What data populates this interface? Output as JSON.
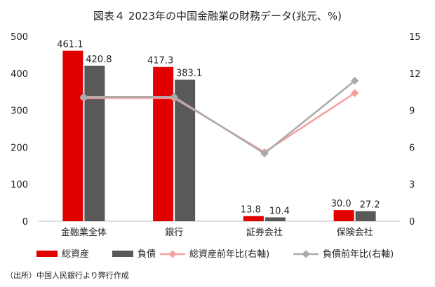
{
  "chart_data": {
    "type": "bar",
    "title": "図表４ 2023年の中国金融業の財務データ(兆元、%)",
    "categories": [
      "金融業全体",
      "銀行",
      "証券会社",
      "保険会社"
    ],
    "series": [
      {
        "name": "総資産",
        "type": "bar",
        "axis": "left",
        "color": "#e00000",
        "values": [
          461.1,
          417.3,
          13.8,
          30.0
        ],
        "labels": [
          "461.1",
          "417.3",
          "13.8",
          "30.0"
        ]
      },
      {
        "name": "負債",
        "type": "bar",
        "axis": "left",
        "color": "#595959",
        "values": [
          420.8,
          383.1,
          10.4,
          27.2
        ],
        "labels": [
          "420.8",
          "383.1",
          "10.4",
          "27.2"
        ]
      },
      {
        "name": "総資産前年比(右軸)",
        "type": "line",
        "axis": "right",
        "color": "#f4a0a0",
        "values": [
          10.0,
          10.0,
          5.6,
          10.4
        ]
      },
      {
        "name": "負債前年比(右軸)",
        "type": "line",
        "axis": "right",
        "color": "#aaaaaa",
        "values": [
          10.1,
          10.1,
          5.5,
          11.4
        ]
      }
    ],
    "y_left": {
      "lim": [
        0,
        500
      ],
      "ticks": [
        "0",
        "100",
        "200",
        "300",
        "400",
        "500"
      ]
    },
    "y_right": {
      "lim": [
        0,
        15
      ],
      "ticks": [
        "0",
        "3",
        "6",
        "9",
        "12",
        "15"
      ]
    },
    "legend_position": "bottom",
    "grid": false
  },
  "source_note": "（出所）中国人民銀行より弊行作成"
}
